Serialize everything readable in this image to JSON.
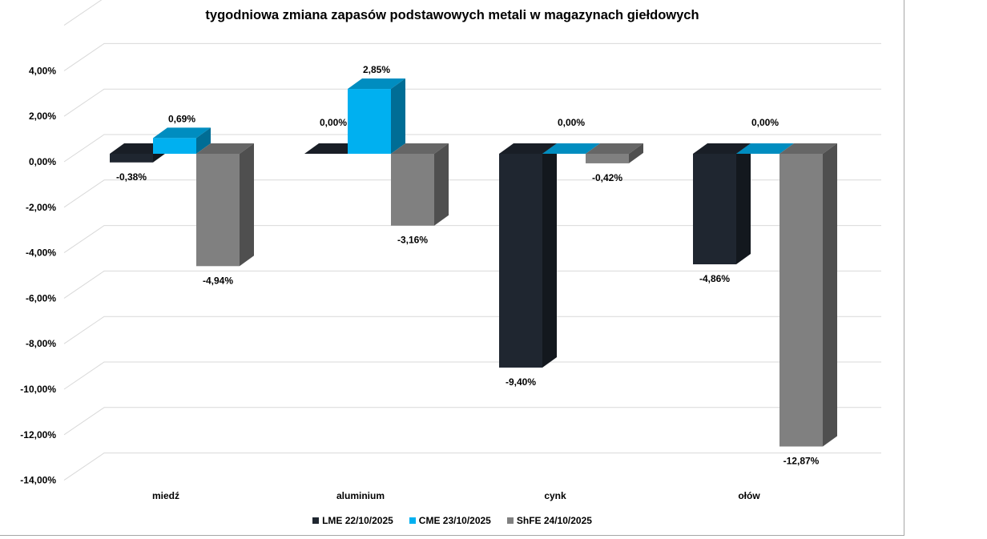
{
  "chart_data": {
    "type": "bar",
    "title": "tygodniowa zmiana zapasów podstawowych metali w magazynach giełdowych",
    "categories": [
      "miedź",
      "aluminium",
      "cynk",
      "ołów"
    ],
    "series": [
      {
        "name": "LME 22/10/2025",
        "color": "#1f2630",
        "values": [
          -0.38,
          0.0,
          -9.4,
          -4.86
        ],
        "labels": [
          "-0,38%",
          "0,00%",
          "-9,40%",
          "-4,86%"
        ]
      },
      {
        "name": "CME 23/10/2025",
        "color": "#00b0f0",
        "values": [
          0.69,
          2.85,
          0.0,
          0.0
        ],
        "labels": [
          "0,69%",
          "2,85%",
          "0,00%",
          "0,00%"
        ]
      },
      {
        "name": "ShFE 24/10/2025",
        "color": "#808080",
        "values": [
          -4.94,
          -3.16,
          -0.42,
          -12.87
        ],
        "labels": [
          "-4,94%",
          "-3,16%",
          "-0,42%",
          "-12,87%"
        ]
      }
    ],
    "yticks": [
      "4,00%",
      "2,00%",
      "0,00%",
      "-2,00%",
      "-4,00%",
      "-6,00%",
      "-8,00%",
      "-10,00%",
      "-12,00%",
      "-14,00%"
    ],
    "ytick_values": [
      4,
      2,
      0,
      -2,
      -4,
      -6,
      -8,
      -10,
      -12,
      -14
    ],
    "ylim": [
      -14,
      6
    ],
    "grid": true,
    "legend": "bottom"
  }
}
